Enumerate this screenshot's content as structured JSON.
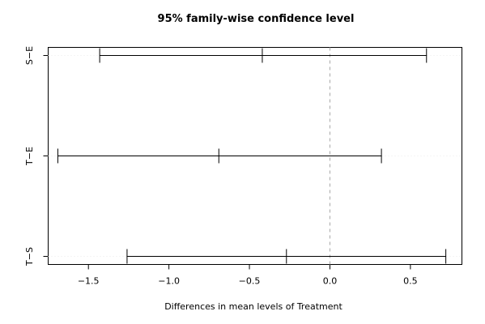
{
  "chart_data": {
    "type": "errorbar",
    "title": "95% family-wise confidence level",
    "xlabel": "Differences in mean levels of Treatment",
    "ylabel": "",
    "xlim": [
      -1.75,
      0.82
    ],
    "x_ticks": [
      -1.5,
      -1.0,
      -0.5,
      0.0,
      0.5
    ],
    "x_tick_labels": [
      "−1.5",
      "−1.0",
      "−0.5",
      "0.0",
      "0.5"
    ],
    "reference_line_x": 0.0,
    "categories": [
      "S−E",
      "T−E",
      "T−S"
    ],
    "intervals": [
      {
        "label": "S−E",
        "lower": -1.43,
        "estimate": -0.42,
        "upper": 0.6
      },
      {
        "label": "T−E",
        "lower": -1.69,
        "estimate": -0.69,
        "upper": 0.32
      },
      {
        "label": "T−S",
        "lower": -1.26,
        "estimate": -0.27,
        "upper": 0.72
      }
    ],
    "grid": false,
    "colors": {
      "interval": "#000000",
      "reference_line": "#a7a7a7",
      "border": "#000000"
    }
  }
}
